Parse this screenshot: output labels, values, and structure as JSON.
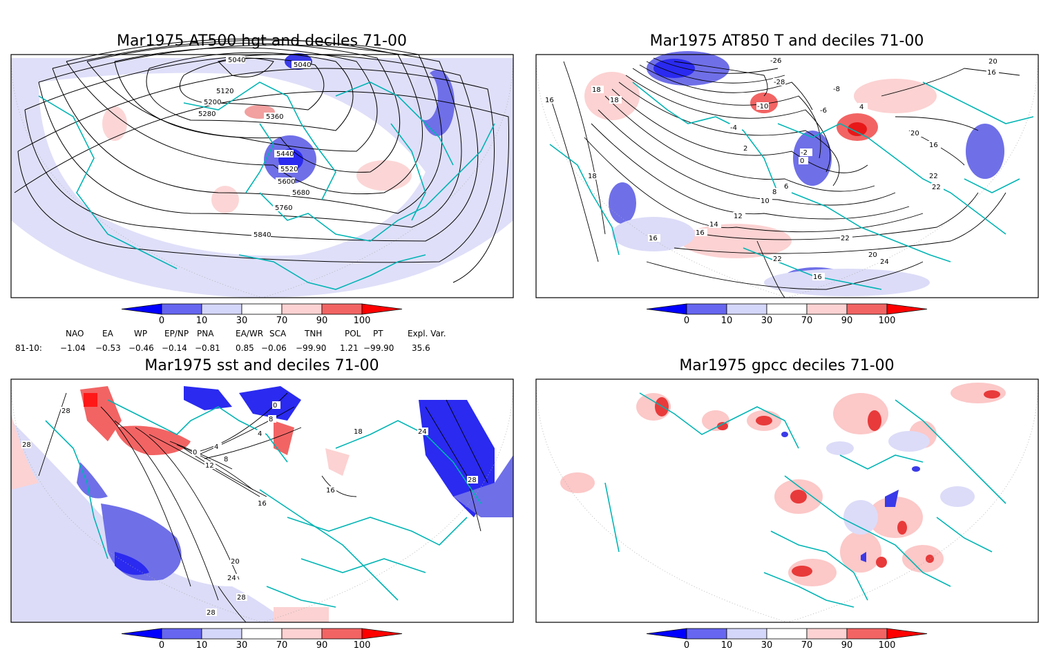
{
  "panels": [
    {
      "title": "Mar1975 AT500 hgt and deciles 71-00",
      "contour_labels": [
        "5040",
        "5040",
        "5120",
        "5200",
        "5280",
        "5360",
        "5440",
        "5520",
        "5600",
        "5680",
        "5760",
        "5840"
      ]
    },
    {
      "title": "Mar1975 AT850 T and deciles 71-00",
      "contour_labels": [
        "-26",
        "-28",
        "-10",
        "-8",
        "-6",
        "-4",
        "-2",
        "0",
        "2",
        "4",
        "6",
        "8",
        "10",
        "12",
        "14",
        "16",
        "16",
        "16",
        "18",
        "18",
        "18",
        "16",
        "20",
        "22",
        "22",
        "24",
        "20",
        "22",
        "22",
        "16",
        "20",
        "16"
      ]
    },
    {
      "title": "Mar1975 sst and deciles 71-00",
      "contour_labels": [
        "28",
        "28",
        "0",
        "4",
        "8",
        "12",
        "16",
        "20",
        "24",
        "28",
        "28",
        "24",
        "28",
        "16",
        "18",
        "0",
        "4",
        "8"
      ]
    },
    {
      "title": "Mar1975 gpcc deciles 71-00",
      "contour_labels": []
    }
  ],
  "colorbar": {
    "labels": [
      "0",
      "10",
      "30",
      "70",
      "90",
      "100"
    ],
    "colors": [
      "#0000ff",
      "#6666f0",
      "#d4d6fa",
      "#ffffff",
      "#fcd2d2",
      "#f26464",
      "#ff0000"
    ]
  },
  "indices": {
    "headers": [
      "NAO",
      "EA",
      "WP",
      "EP/NP",
      "PNA",
      "EA/WR",
      "SCA",
      "TNH",
      "POL",
      "PT",
      "Expl. Var."
    ],
    "row_label": "81-10:",
    "values": [
      "−1.04",
      "−0.53",
      "−0.46",
      "−0.14",
      "−0.81",
      "0.85",
      "−0.06",
      "−99.90",
      "1.21",
      "−99.90",
      "35.6"
    ]
  },
  "colors": {
    "coast": "#00b4b4",
    "frame": "#000000"
  }
}
